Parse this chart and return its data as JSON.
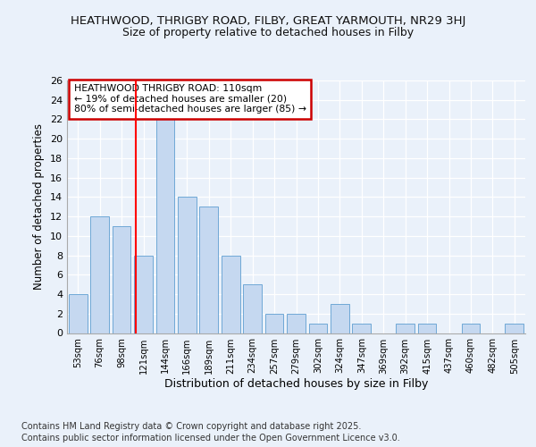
{
  "title1": "HEATHWOOD, THRIGBY ROAD, FILBY, GREAT YARMOUTH, NR29 3HJ",
  "title2": "Size of property relative to detached houses in Filby",
  "xlabel": "Distribution of detached houses by size in Filby",
  "ylabel": "Number of detached properties",
  "categories": [
    "53sqm",
    "76sqm",
    "98sqm",
    "121sqm",
    "144sqm",
    "166sqm",
    "189sqm",
    "211sqm",
    "234sqm",
    "257sqm",
    "279sqm",
    "302sqm",
    "324sqm",
    "347sqm",
    "369sqm",
    "392sqm",
    "415sqm",
    "437sqm",
    "460sqm",
    "482sqm",
    "505sqm"
  ],
  "values": [
    4,
    12,
    11,
    8,
    22,
    14,
    13,
    8,
    5,
    2,
    2,
    1,
    3,
    1,
    0,
    1,
    1,
    0,
    1,
    0,
    1
  ],
  "bar_color": "#c5d8f0",
  "bar_edge_color": "#6fa8d6",
  "red_line_x": 2.65,
  "annotation_text": "HEATHWOOD THRIGBY ROAD: 110sqm\n← 19% of detached houses are smaller (20)\n80% of semi-detached houses are larger (85) →",
  "annotation_box_color": "#ffffff",
  "annotation_box_edge": "#cc0000",
  "footer_line1": "Contains HM Land Registry data © Crown copyright and database right 2025.",
  "footer_line2": "Contains public sector information licensed under the Open Government Licence v3.0.",
  "bg_color": "#eaf1fa",
  "ylim": [
    0,
    26
  ],
  "yticks": [
    0,
    2,
    4,
    6,
    8,
    10,
    12,
    14,
    16,
    18,
    20,
    22,
    24,
    26
  ]
}
